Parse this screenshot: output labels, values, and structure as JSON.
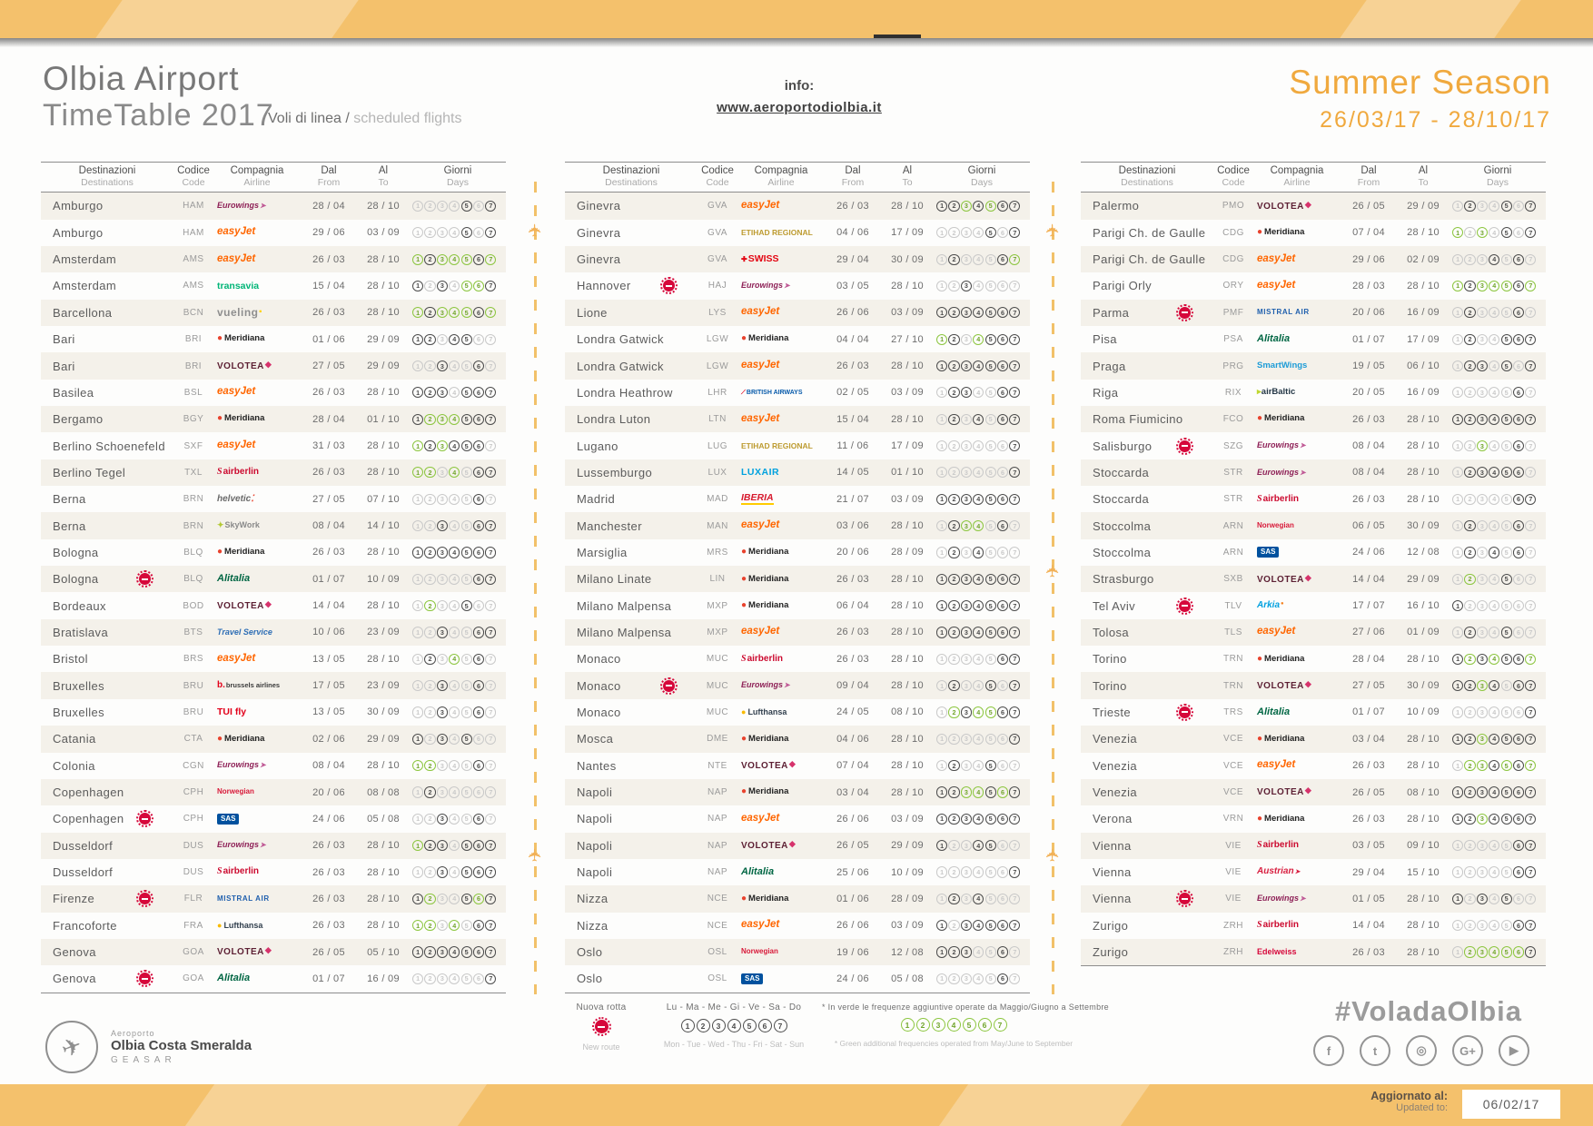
{
  "header": {
    "title_line1": "Olbia Airport",
    "title_line2": "TimeTable 2017",
    "subtitle_it": "Voli di linea /",
    "subtitle_en": "scheduled flights",
    "info_label": "info:",
    "info_url": "www.aeroportodiolbia.it",
    "season": "Summer Season",
    "season_dates": "26/03/17 - 28/10/17"
  },
  "table_headers": {
    "dest_it": "Destinazioni",
    "dest_en": "Destinations",
    "code_it": "Codice",
    "code_en": "Code",
    "airline_it": "Compagnia",
    "airline_en": "Airline",
    "from_it": "Dal",
    "from_en": "From",
    "to_it": "Al",
    "to_en": "To",
    "days_it": "Giorni",
    "days_en": "Days"
  },
  "columns": [
    {
      "rows": [
        {
          "d": "Amburgo",
          "c": "HAM",
          "a": "Eurowings",
          "f": "28 / 04",
          "t": "28 / 10",
          "g": "ooooxox",
          "n": false
        },
        {
          "d": "Amburgo",
          "c": "HAM",
          "a": "easyJet",
          "f": "29 / 06",
          "t": "03 / 09",
          "g": "ooooxox",
          "n": false
        },
        {
          "d": "Amsterdam",
          "c": "AMS",
          "a": "easyJet",
          "f": "26 / 03",
          "t": "28 / 10",
          "g": "gxgggxg",
          "n": false
        },
        {
          "d": "Amsterdam",
          "c": "AMS",
          "a": "transavia",
          "f": "15 / 04",
          "t": "28 / 10",
          "g": "xoxoggx",
          "n": false
        },
        {
          "d": "Barcellona",
          "c": "BCN",
          "a": "vueling",
          "f": "26 / 03",
          "t": "28 / 10",
          "g": "gxgggxg",
          "n": false
        },
        {
          "d": "Bari",
          "c": "BRI",
          "a": "Meridiana",
          "f": "01 / 06",
          "t": "29 / 09",
          "g": "xxoxxoo",
          "n": false
        },
        {
          "d": "Bari",
          "c": "BRI",
          "a": "VOLOTEA",
          "f": "27 / 05",
          "t": "29 / 09",
          "g": "ooxooxo",
          "n": false
        },
        {
          "d": "Basilea",
          "c": "BSL",
          "a": "easyJet",
          "f": "26 / 03",
          "t": "28 / 10",
          "g": "xxxoxxx",
          "n": false
        },
        {
          "d": "Bergamo",
          "c": "BGY",
          "a": "Meridiana",
          "f": "28 / 04",
          "t": "01 / 10",
          "g": "xgggxxx",
          "n": false
        },
        {
          "d": "Berlino Schoenefeld",
          "c": "SXF",
          "a": "easyJet",
          "f": "31 / 03",
          "t": "28 / 10",
          "g": "gxgxxxo",
          "n": false
        },
        {
          "d": "Berlino Tegel",
          "c": "TXL",
          "a": "airberlin",
          "f": "26 / 03",
          "t": "28 / 10",
          "g": "ggogoxx",
          "n": false
        },
        {
          "d": "Berna",
          "c": "BRN",
          "a": "helvetic",
          "f": "27 / 05",
          "t": "07 / 10",
          "g": "oooooxo",
          "n": false
        },
        {
          "d": "Berna",
          "c": "BRN",
          "a": "SkyWork",
          "f": "08 / 04",
          "t": "14 / 10",
          "g": "ooxooxx",
          "n": false
        },
        {
          "d": "Bologna",
          "c": "BLQ",
          "a": "Meridiana",
          "f": "26 / 03",
          "t": "28 / 10",
          "g": "xxxxxxx",
          "n": false
        },
        {
          "d": "Bologna",
          "c": "BLQ",
          "a": "Alitalia",
          "f": "01 / 07",
          "t": "10 / 09",
          "g": "oooooxx",
          "n": true
        },
        {
          "d": "Bordeaux",
          "c": "BOD",
          "a": "VOLOTEA",
          "f": "14 / 04",
          "t": "28 / 10",
          "g": "ogooxoo",
          "n": false
        },
        {
          "d": "Bratislava",
          "c": "BTS",
          "a": "Travel Service",
          "f": "10 / 06",
          "t": "23 / 09",
          "g": "ooxooxx",
          "n": false
        },
        {
          "d": "Bristol",
          "c": "BRS",
          "a": "easyJet",
          "f": "13 / 05",
          "t": "28 / 10",
          "g": "oxogoxo",
          "n": false
        },
        {
          "d": "Bruxelles",
          "c": "BRU",
          "a": "brussels airlines",
          "f": "17 / 05",
          "t": "23 / 09",
          "g": "ooxooxo",
          "n": false
        },
        {
          "d": "Bruxelles",
          "c": "BRU",
          "a": "TUI fly",
          "f": "13 / 05",
          "t": "30 / 09",
          "g": "ooxooxo",
          "n": false
        },
        {
          "d": "Catania",
          "c": "CTA",
          "a": "Meridiana",
          "f": "02 / 06",
          "t": "29 / 09",
          "g": "xoxoxoo",
          "n": false
        },
        {
          "d": "Colonia",
          "c": "CGN",
          "a": "Eurowings",
          "f": "08 / 04",
          "t": "28 / 10",
          "g": "ggoooxo",
          "n": false
        },
        {
          "d": "Copenhagen",
          "c": "CPH",
          "a": "Norwegian",
          "f": "20 / 06",
          "t": "08 / 08",
          "g": "oxooooo",
          "n": false
        },
        {
          "d": "Copenhagen",
          "c": "CPH",
          "a": "SAS",
          "f": "24 / 06",
          "t": "05 / 08",
          "g": "ooxooxo",
          "n": true
        },
        {
          "d": "Dusseldorf",
          "c": "DUS",
          "a": "Eurowings",
          "f": "26 / 03",
          "t": "28 / 10",
          "g": "gxxoxxx",
          "n": false
        },
        {
          "d": "Dusseldorf",
          "c": "DUS",
          "a": "airberlin",
          "f": "26 / 03",
          "t": "28 / 10",
          "g": "ooxoxxx",
          "n": false
        },
        {
          "d": "Firenze",
          "c": "FLR",
          "a": "Mistral Air",
          "f": "26 / 03",
          "t": "28 / 10",
          "g": "xgooxgx",
          "n": true
        },
        {
          "d": "Francoforte",
          "c": "FRA",
          "a": "Lufthansa",
          "f": "26 / 03",
          "t": "28 / 10",
          "g": "ggogoxx",
          "n": false
        },
        {
          "d": "Genova",
          "c": "GOA",
          "a": "VOLOTEA",
          "f": "26 / 05",
          "t": "05 / 10",
          "g": "xxxxxxx",
          "n": false
        },
        {
          "d": "Genova",
          "c": "GOA",
          "a": "Alitalia",
          "f": "01 / 07",
          "t": "16 / 09",
          "g": "oooooox",
          "n": true
        }
      ]
    },
    {
      "rows": [
        {
          "d": "Ginevra",
          "c": "GVA",
          "a": "easyJet",
          "f": "26 / 03",
          "t": "28 / 10",
          "g": "xxgxgxx",
          "n": false
        },
        {
          "d": "Ginevra",
          "c": "GVA",
          "a": "Etihad Regional",
          "f": "04 / 06",
          "t": "17 / 09",
          "g": "ooooxox",
          "n": false
        },
        {
          "d": "Ginevra",
          "c": "GVA",
          "a": "SWISS",
          "f": "29 / 04",
          "t": "30 / 09",
          "g": "oxoooxg",
          "n": false
        },
        {
          "d": "Hannover",
          "c": "HAJ",
          "a": "Eurowings",
          "f": "03 / 05",
          "t": "28 / 10",
          "g": "ooxoooo",
          "n": true
        },
        {
          "d": "Lione",
          "c": "LYS",
          "a": "easyJet",
          "f": "26 / 06",
          "t": "03 / 09",
          "g": "xxxxxxx",
          "n": false
        },
        {
          "d": "Londra Gatwick",
          "c": "LGW",
          "a": "Meridiana",
          "f": "04 / 04",
          "t": "27 / 10",
          "g": "gxogxxx",
          "n": false
        },
        {
          "d": "Londra Gatwick",
          "c": "LGW",
          "a": "easyJet",
          "f": "26 / 03",
          "t": "28 / 10",
          "g": "xxxxxxx",
          "n": false
        },
        {
          "d": "Londra Heathrow",
          "c": "LHR",
          "a": "British Airways",
          "f": "02 / 05",
          "t": "03 / 09",
          "g": "oxxooxx",
          "n": false
        },
        {
          "d": "Londra Luton",
          "c": "LTN",
          "a": "easyJet",
          "f": "15 / 04",
          "t": "28 / 10",
          "g": "oxoxoxx",
          "n": false
        },
        {
          "d": "Lugano",
          "c": "LUG",
          "a": "Etihad Regional",
          "f": "11 / 06",
          "t": "17 / 09",
          "g": "oooooox",
          "n": false
        },
        {
          "d": "Lussemburgo",
          "c": "LUX",
          "a": "LUXAIR",
          "f": "14 / 05",
          "t": "01 / 10",
          "g": "oooooox",
          "n": false
        },
        {
          "d": "Madrid",
          "c": "MAD",
          "a": "IBERIA",
          "f": "21 / 07",
          "t": "03 / 09",
          "g": "xxxxxxx",
          "n": false
        },
        {
          "d": "Manchester",
          "c": "MAN",
          "a": "easyJet",
          "f": "03 / 06",
          "t": "28 / 10",
          "g": "oxggoxo",
          "n": false
        },
        {
          "d": "Marsiglia",
          "c": "MRS",
          "a": "Meridiana",
          "f": "20 / 06",
          "t": "28 / 09",
          "g": "oxoxooo",
          "n": false
        },
        {
          "d": "Milano Linate",
          "c": "LIN",
          "a": "Meridiana",
          "f": "26 / 03",
          "t": "28 / 10",
          "g": "xxxxxxx",
          "n": false
        },
        {
          "d": "Milano Malpensa",
          "c": "MXP",
          "a": "Meridiana",
          "f": "06 / 04",
          "t": "28 / 10",
          "g": "xxxxxxx",
          "n": false
        },
        {
          "d": "Milano Malpensa",
          "c": "MXP",
          "a": "easyJet",
          "f": "26 / 03",
          "t": "28 / 10",
          "g": "xxxxxxx",
          "n": false
        },
        {
          "d": "Monaco",
          "c": "MUC",
          "a": "airberlin",
          "f": "26 / 03",
          "t": "28 / 10",
          "g": "oooooxx",
          "n": false
        },
        {
          "d": "Monaco",
          "c": "MUC",
          "a": "Eurowings",
          "f": "09 / 04",
          "t": "28 / 10",
          "g": "oxooxox",
          "n": true
        },
        {
          "d": "Monaco",
          "c": "MUC",
          "a": "Lufthansa",
          "f": "24 / 05",
          "t": "08 / 10",
          "g": "ogxggxx",
          "n": false
        },
        {
          "d": "Mosca",
          "c": "DME",
          "a": "Meridiana",
          "f": "04 / 06",
          "t": "28 / 10",
          "g": "oooooox",
          "n": false
        },
        {
          "d": "Nantes",
          "c": "NTE",
          "a": "VOLOTEA",
          "f": "07 / 04",
          "t": "28 / 10",
          "g": "oxooxoo",
          "n": false
        },
        {
          "d": "Napoli",
          "c": "NAP",
          "a": "Meridiana",
          "f": "03 / 04",
          "t": "28 / 10",
          "g": "xxggxgx",
          "n": false
        },
        {
          "d": "Napoli",
          "c": "NAP",
          "a": "easyJet",
          "f": "26 / 06",
          "t": "03 / 09",
          "g": "xxxxxxx",
          "n": false
        },
        {
          "d": "Napoli",
          "c": "NAP",
          "a": "VOLOTEA",
          "f": "26 / 05",
          "t": "29 / 09",
          "g": "xooxxoo",
          "n": false
        },
        {
          "d": "Napoli",
          "c": "NAP",
          "a": "Alitalia",
          "f": "25 / 06",
          "t": "10 / 09",
          "g": "oooooox",
          "n": false
        },
        {
          "d": "Nizza",
          "c": "NCE",
          "a": "Meridiana",
          "f": "01 / 06",
          "t": "28 / 09",
          "g": "oxoxooo",
          "n": false
        },
        {
          "d": "Nizza",
          "c": "NCE",
          "a": "easyJet",
          "f": "26 / 06",
          "t": "03 / 09",
          "g": "xoxxxxx",
          "n": false
        },
        {
          "d": "Oslo",
          "c": "OSL",
          "a": "Norwegian",
          "f": "19 / 06",
          "t": "12 / 08",
          "g": "xxxooxo",
          "n": false
        },
        {
          "d": "Oslo",
          "c": "OSL",
          "a": "SAS",
          "f": "24 / 06",
          "t": "05 / 08",
          "g": "oooooxo",
          "n": false
        }
      ]
    },
    {
      "rows": [
        {
          "d": "Palermo",
          "c": "PMO",
          "a": "VOLOTEA",
          "f": "26 / 05",
          "t": "29 / 09",
          "g": "oxooxox",
          "n": false
        },
        {
          "d": "Parigi Ch. de Gaulle",
          "c": "CDG",
          "a": "Meridiana",
          "f": "07 / 04",
          "t": "28 / 10",
          "g": "gogoxox",
          "n": false
        },
        {
          "d": "Parigi Ch. de Gaulle",
          "c": "CDG",
          "a": "easyJet",
          "f": "29 / 06",
          "t": "02 / 09",
          "g": "oooxoxo",
          "n": false
        },
        {
          "d": "Parigi Orly",
          "c": "ORY",
          "a": "easyJet",
          "f": "28 / 03",
          "t": "28 / 10",
          "g": "gxgggxg",
          "n": false
        },
        {
          "d": "Parma",
          "c": "PMF",
          "a": "Mistral Air",
          "f": "20 / 06",
          "t": "16 / 09",
          "g": "oxoooxo",
          "n": true
        },
        {
          "d": "Pisa",
          "c": "PSA",
          "a": "Alitalia",
          "f": "01 / 07",
          "t": "17 / 09",
          "g": "oxooxxx",
          "n": false
        },
        {
          "d": "Praga",
          "c": "PRG",
          "a": "SmartWings",
          "f": "19 / 05",
          "t": "06 / 10",
          "g": "oxxoxox",
          "n": false
        },
        {
          "d": "Riga",
          "c": "RIX",
          "a": "airBaltic",
          "f": "20 / 05",
          "t": "16 / 09",
          "g": "oooooxo",
          "n": false
        },
        {
          "d": "Roma Fiumicino",
          "c": "FCO",
          "a": "Meridiana",
          "f": "26 / 03",
          "t": "28 / 10",
          "g": "xxxxxxx",
          "n": false
        },
        {
          "d": "Salisburgo",
          "c": "SZG",
          "a": "Eurowings",
          "f": "08 / 04",
          "t": "28 / 10",
          "g": "oogooxo",
          "n": true
        },
        {
          "d": "Stoccarda",
          "c": "STR",
          "a": "Eurowings",
          "f": "08 / 04",
          "t": "28 / 10",
          "g": "oxxxxxo",
          "n": false
        },
        {
          "d": "Stoccarda",
          "c": "STR",
          "a": "airberlin",
          "f": "26 / 03",
          "t": "28 / 10",
          "g": "oooooxx",
          "n": false
        },
        {
          "d": "Stoccolma",
          "c": "ARN",
          "a": "Norwegian",
          "f": "06 / 05",
          "t": "30 / 09",
          "g": "oxoooxo",
          "n": false
        },
        {
          "d": "Stoccolma",
          "c": "ARN",
          "a": "SAS",
          "f": "24 / 06",
          "t": "12 / 08",
          "g": "oxoxoxo",
          "n": false
        },
        {
          "d": "Strasburgo",
          "c": "SXB",
          "a": "VOLOTEA",
          "f": "14 / 04",
          "t": "29 / 09",
          "g": "ogooxoo",
          "n": false
        },
        {
          "d": "Tel Aviv",
          "c": "TLV",
          "a": "Arkia",
          "f": "17 / 07",
          "t": "16 / 10",
          "g": "xoooooo",
          "n": true
        },
        {
          "d": "Tolosa",
          "c": "TLS",
          "a": "easyJet",
          "f": "27 / 06",
          "t": "01 / 09",
          "g": "oxooxoo",
          "n": false
        },
        {
          "d": "Torino",
          "c": "TRN",
          "a": "Meridiana",
          "f": "28 / 04",
          "t": "28 / 10",
          "g": "xgxgxxg",
          "n": false
        },
        {
          "d": "Torino",
          "c": "TRN",
          "a": "VOLOTEA",
          "f": "27 / 05",
          "t": "30 / 09",
          "g": "xxgxoxx",
          "n": false
        },
        {
          "d": "Trieste",
          "c": "TRS",
          "a": "Alitalia",
          "f": "01 / 07",
          "t": "10 / 09",
          "g": "oooooox",
          "n": true
        },
        {
          "d": "Venezia",
          "c": "VCE",
          "a": "Meridiana",
          "f": "03 / 04",
          "t": "28 / 10",
          "g": "xxgxxxx",
          "n": false
        },
        {
          "d": "Venezia",
          "c": "VCE",
          "a": "easyJet",
          "f": "26 / 03",
          "t": "28 / 10",
          "g": "oggxgxg",
          "n": false
        },
        {
          "d": "Venezia",
          "c": "VCE",
          "a": "VOLOTEA",
          "f": "26 / 05",
          "t": "08 / 10",
          "g": "xxxxxxx",
          "n": false
        },
        {
          "d": "Verona",
          "c": "VRN",
          "a": "Meridiana",
          "f": "26 / 03",
          "t": "28 / 10",
          "g": "xxgxxxx",
          "n": false
        },
        {
          "d": "Vienna",
          "c": "VIE",
          "a": "airberlin",
          "f": "03 / 05",
          "t": "09 / 10",
          "g": "oooooxx",
          "n": false
        },
        {
          "d": "Vienna",
          "c": "VIE",
          "a": "Austrian",
          "f": "29 / 04",
          "t": "15 / 10",
          "g": "oooooxx",
          "n": false
        },
        {
          "d": "Vienna",
          "c": "VIE",
          "a": "Eurowings",
          "f": "01 / 05",
          "t": "28 / 10",
          "g": "xoxoxoo",
          "n": true
        },
        {
          "d": "Zurigo",
          "c": "ZRH",
          "a": "airberlin",
          "f": "14 / 04",
          "t": "28 / 10",
          "g": "oooooxx",
          "n": false
        },
        {
          "d": "Zurigo",
          "c": "ZRH",
          "a": "Edelweiss",
          "f": "26 / 03",
          "t": "28 / 10",
          "g": "ogggggx",
          "n": false
        }
      ]
    }
  ],
  "legend": {
    "new_route_it": "Nuova rotta",
    "new_route_en": "New route",
    "day_names_it": "Lu - Ma - Me - Gi - Ve - Sa - Do",
    "day_names_en": "Mon - Tue - Wed - Thu - Fri - Sat - Sun",
    "day_numbers": [
      "1",
      "2",
      "3",
      "4",
      "5",
      "6",
      "7"
    ],
    "green_note_it": "* In verde le frequenze aggiuntive operate da Maggio/Giugno a Settembre",
    "green_note_en": "* Green additional frequencies operated from May/June to September"
  },
  "footer": {
    "hashtag": "#VoladaOlbia",
    "updated_it": "Aggiornato al:",
    "updated_en": "Updated to:",
    "updated_date": "06/02/17",
    "logo_line1": "Aeroporto",
    "logo_line2": "Olbia Costa Smeralda",
    "logo_line3": "GEASAR",
    "socials": [
      "facebook",
      "twitter",
      "instagram",
      "google-plus",
      "youtube"
    ],
    "social_glyphs": [
      "f",
      "t",
      "◎",
      "G+",
      "▶"
    ]
  },
  "colors": {
    "band_orange": "#f4c16c",
    "season_orange": "#f0a93e",
    "day_active": "#4c4c4c",
    "day_inactive": "#c9c9c9",
    "day_green": "#8cc63f",
    "new_route_red": "#d6083b"
  }
}
